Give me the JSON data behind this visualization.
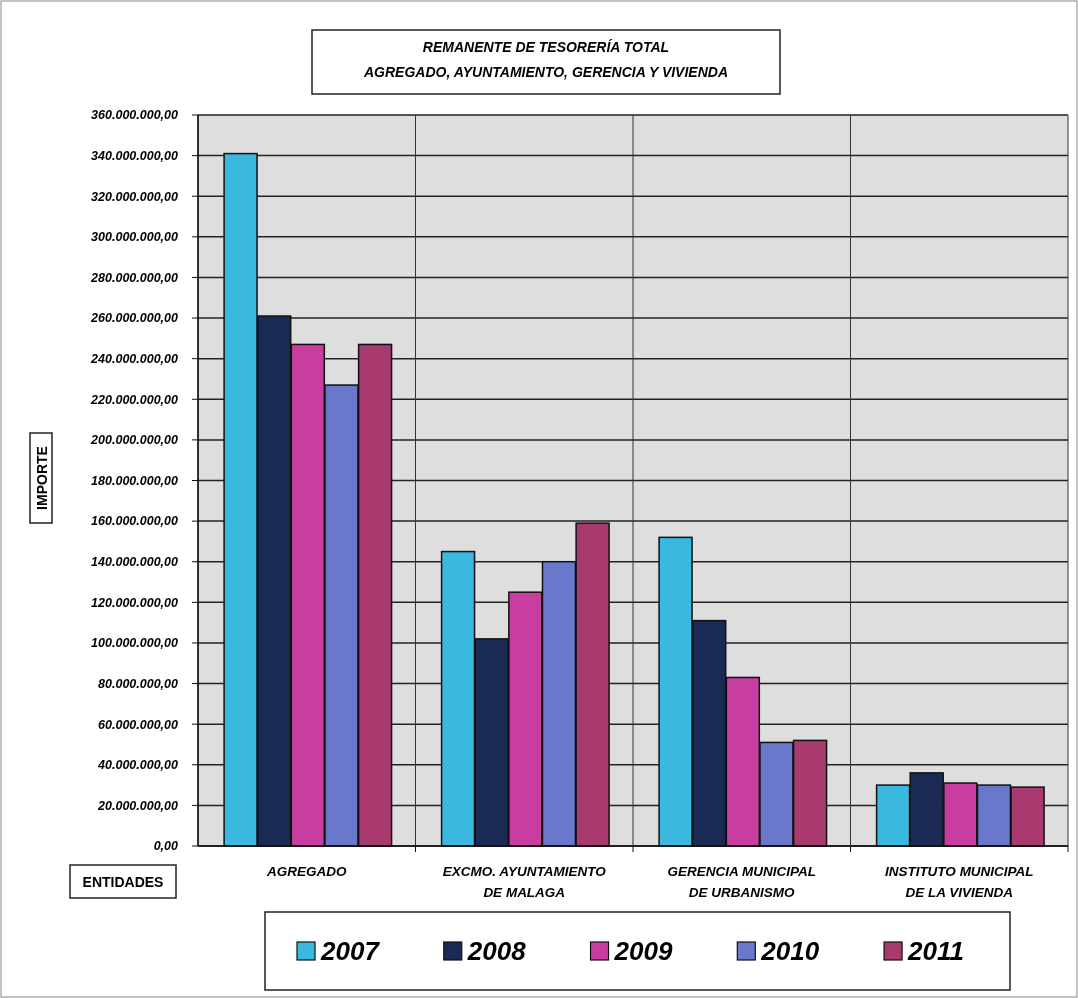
{
  "chart_data": {
    "type": "bar",
    "title": "REMANENTE DE TESORERÍA TOTAL",
    "subtitle": "AGREGADO, AYUNTAMIENTO, GERENCIA Y VIVIENDA",
    "xlabel": "ENTIDADES",
    "ylabel": "IMPORTE",
    "categories": [
      "AGREGADO",
      "EXCMO. AYUNTAMIENTO DE MALAGA",
      "GERENCIA MUNICIPAL DE URBANISMO",
      "INSTITUTO MUNICIPAL DE LA VIVIENDA"
    ],
    "series": [
      {
        "name": "2007",
        "color": "#3ab8e0",
        "values": [
          341000000,
          145000000,
          152000000,
          30000000
        ]
      },
      {
        "name": "2008",
        "color": "#1a2a55",
        "values": [
          261000000,
          102000000,
          111000000,
          36000000
        ]
      },
      {
        "name": "2009",
        "color": "#c83ea0",
        "values": [
          247000000,
          125000000,
          83000000,
          31000000
        ]
      },
      {
        "name": "2010",
        "color": "#6a78cc",
        "values": [
          227000000,
          140000000,
          51000000,
          30000000
        ]
      },
      {
        "name": "2011",
        "color": "#a83a70",
        "values": [
          247000000,
          159000000,
          52000000,
          29000000
        ]
      }
    ],
    "ylim": [
      0,
      360000000
    ],
    "yticks": [
      {
        "value": 0,
        "label": "0,00"
      },
      {
        "value": 20000000,
        "label": "20.000.000,00"
      },
      {
        "value": 40000000,
        "label": "40.000.000,00"
      },
      {
        "value": 60000000,
        "label": "60.000.000,00"
      },
      {
        "value": 80000000,
        "label": "80.000.000,00"
      },
      {
        "value": 100000000,
        "label": "100.000.000,00"
      },
      {
        "value": 120000000,
        "label": "120.000.000,00"
      },
      {
        "value": 140000000,
        "label": "140.000.000,00"
      },
      {
        "value": 160000000,
        "label": "160.000.000,00"
      },
      {
        "value": 180000000,
        "label": "180.000.000,00"
      },
      {
        "value": 200000000,
        "label": "200.000.000,00"
      },
      {
        "value": 220000000,
        "label": "220.000.000,00"
      },
      {
        "value": 240000000,
        "label": "240.000.000,00"
      },
      {
        "value": 260000000,
        "label": "260.000.000,00"
      },
      {
        "value": 280000000,
        "label": "280.000.000,00"
      },
      {
        "value": 300000000,
        "label": "300.000.000,00"
      },
      {
        "value": 320000000,
        "label": "320.000.000,00"
      },
      {
        "value": 340000000,
        "label": "340.000.000,00"
      },
      {
        "value": 360000000,
        "label": "360.000.000,00"
      }
    ],
    "grid": true,
    "legend": "bottom"
  }
}
